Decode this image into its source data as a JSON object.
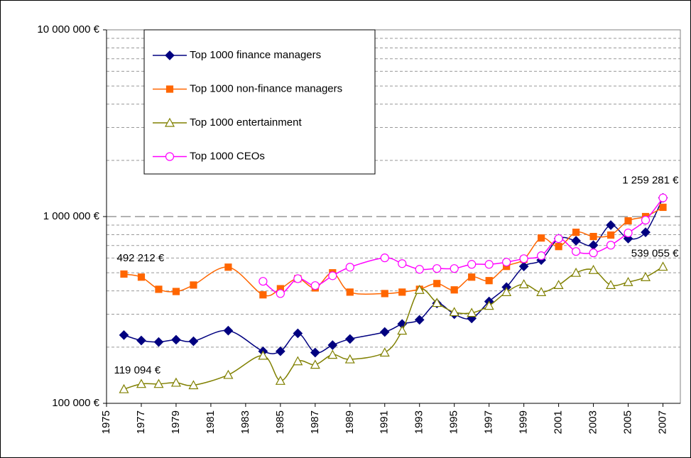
{
  "chart_data": {
    "type": "line",
    "log_y": true,
    "x": [
      1976,
      1977,
      1978,
      1979,
      1980,
      1982,
      1984,
      1985,
      1986,
      1987,
      1988,
      1989,
      1991,
      1992,
      1993,
      1994,
      1995,
      1996,
      1997,
      1998,
      1999,
      2000,
      2001,
      2002,
      2003,
      2004,
      2005,
      2006,
      2007
    ],
    "xlim": [
      1975,
      2008
    ],
    "xticks": [
      1975,
      1977,
      1979,
      1981,
      1983,
      1985,
      1987,
      1989,
      1991,
      1993,
      1995,
      1997,
      1999,
      2001,
      2003,
      2005,
      2007
    ],
    "ylim": [
      100000,
      10000000
    ],
    "yticks": [
      {
        "value": 100000,
        "label": "100 000 €"
      },
      {
        "value": 1000000,
        "label": "1 000 000 €"
      },
      {
        "value": 10000000,
        "label": "10 000 000 €"
      }
    ],
    "minor_yticks": [
      200000,
      300000,
      400000,
      500000,
      600000,
      700000,
      800000,
      900000,
      2000000,
      3000000,
      4000000,
      5000000,
      6000000,
      7000000,
      8000000,
      9000000
    ],
    "grid": true,
    "legend": "upper left",
    "series": [
      {
        "name": "Top 1000 finance managers",
        "color": "#000080",
        "marker": "diamond",
        "values": [
          232000,
          217000,
          213000,
          219000,
          215000,
          245000,
          190000,
          190000,
          237000,
          187000,
          205000,
          221000,
          241000,
          266000,
          280000,
          343000,
          300000,
          285000,
          351000,
          419000,
          541000,
          585000,
          762000,
          742000,
          703000,
          900000,
          762000,
          824000,
          1259281
        ],
        "value_labels": [
          null,
          null,
          null,
          null,
          null,
          null,
          null,
          null,
          null,
          null,
          null,
          null,
          null,
          null,
          null,
          null,
          null,
          null,
          null,
          null,
          null,
          null,
          null,
          null,
          null,
          null,
          null,
          null,
          "1 259 281 €"
        ]
      },
      {
        "name": "Top 1000 non-finance managers",
        "color": "#FF6600",
        "marker": "square",
        "values": [
          492212,
          474000,
          408000,
          397000,
          430000,
          536000,
          381000,
          411000,
          465000,
          415000,
          500000,
          394000,
          387000,
          394000,
          408000,
          438000,
          405000,
          474000,
          454000,
          541000,
          590000,
          768000,
          691000,
          824000,
          782000,
          796000,
          949000,
          1000000,
          1121000
        ],
        "value_labels": [
          "492 212 €",
          null,
          null,
          null,
          null,
          null,
          null,
          null,
          null,
          null,
          null,
          null,
          null,
          null,
          null,
          null,
          null,
          null,
          null,
          null,
          null,
          null,
          null,
          null,
          null,
          null,
          null,
          null,
          null
        ]
      },
      {
        "name": "Top 1000 entertainment",
        "color": "#808000",
        "marker": "triangle",
        "values": [
          119094,
          127000,
          127000,
          129000,
          125000,
          142000,
          180000,
          132000,
          168000,
          161000,
          182000,
          172000,
          187000,
          245000,
          405000,
          345000,
          308000,
          305000,
          333000,
          394000,
          434000,
          394000,
          430000,
          500000,
          518000,
          430000,
          446000,
          474000,
          539055
        ],
        "value_labels": [
          "119 094 €",
          null,
          null,
          null,
          null,
          null,
          null,
          null,
          null,
          null,
          null,
          null,
          null,
          null,
          null,
          null,
          null,
          null,
          null,
          null,
          null,
          null,
          null,
          null,
          null,
          null,
          null,
          null,
          "539 055 €"
        ]
      },
      {
        "name": "Top 1000 CEOs",
        "color": "#FF00FF",
        "marker": "circle",
        "values": [
          null,
          null,
          null,
          null,
          null,
          null,
          450000,
          387000,
          465000,
          427000,
          482000,
          536000,
          601000,
          560000,
          522000,
          527000,
          527000,
          555000,
          555000,
          570000,
          595000,
          617000,
          762000,
          650000,
          639000,
          703000,
          817000,
          957000,
          1259281
        ]
      }
    ]
  }
}
